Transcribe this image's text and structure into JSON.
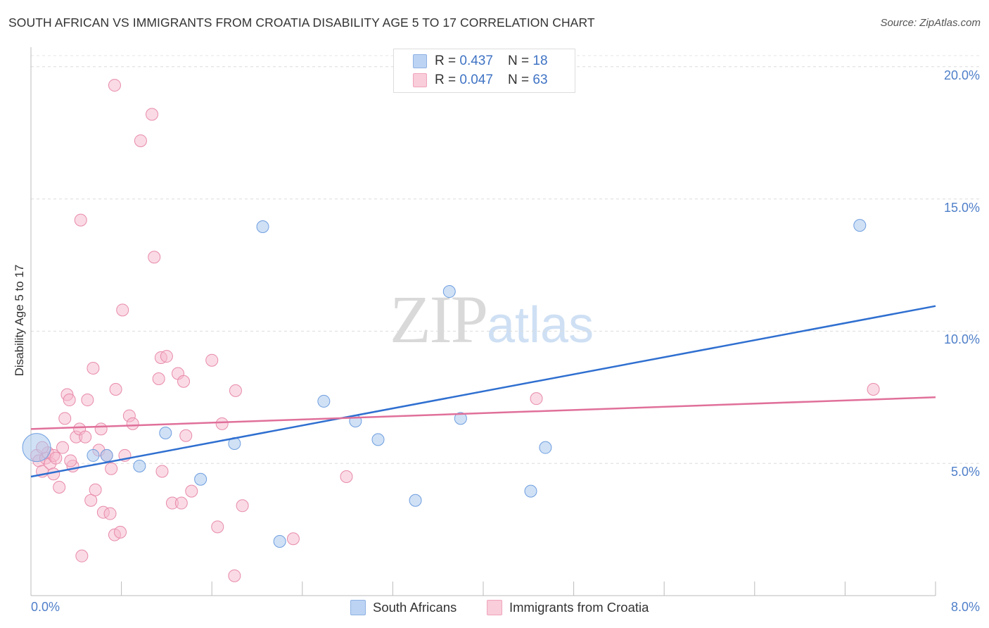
{
  "title": "SOUTH AFRICAN VS IMMIGRANTS FROM CROATIA DISABILITY AGE 5 TO 17 CORRELATION CHART",
  "source": "Source: ZipAtlas.com",
  "watermark": {
    "zip": "ZIP",
    "atlas": "atlas"
  },
  "legend_top": [
    {
      "r_label": "R = ",
      "r_value": "0.437",
      "n_label": "N = ",
      "n_value": "18"
    },
    {
      "r_label": "R = ",
      "r_value": "0.047",
      "n_label": "N = ",
      "n_value": "63"
    }
  ],
  "chart_data": {
    "type": "scatter",
    "title": "SOUTH AFRICAN VS IMMIGRANTS FROM CROATIA DISABILITY AGE 5 TO 17 CORRELATION CHART",
    "xlabel": "",
    "ylabel": "Disability Age 5 to 17",
    "xlim": [
      0,
      8
    ],
    "ylim": [
      0,
      20.5
    ],
    "x_tick_labels": [
      "0.0%",
      "8.0%"
    ],
    "y_ticks": [
      5,
      10,
      15,
      20
    ],
    "y_tick_labels": [
      "5.0%",
      "10.0%",
      "15.0%",
      "20.0%"
    ],
    "grid": true,
    "legend_placement": "bottom",
    "colors": {
      "south_africans": "#a9c8ef",
      "south_africans_line": "#2f6fd0",
      "croatia": "#f6b8cb",
      "croatia_line": "#e0709a"
    },
    "series": [
      {
        "name": "South Africans",
        "r": 0.437,
        "n": 18,
        "trend": {
          "x": [
            0,
            8
          ],
          "y": [
            4.5,
            10.95
          ]
        },
        "points": [
          {
            "x": 0.05,
            "y": 5.6,
            "size": "large"
          },
          {
            "x": 0.55,
            "y": 5.3
          },
          {
            "x": 0.67,
            "y": 5.3
          },
          {
            "x": 0.96,
            "y": 4.9
          },
          {
            "x": 1.19,
            "y": 6.15
          },
          {
            "x": 1.5,
            "y": 4.4
          },
          {
            "x": 1.8,
            "y": 5.75
          },
          {
            "x": 2.05,
            "y": 13.95
          },
          {
            "x": 2.2,
            "y": 2.05
          },
          {
            "x": 2.59,
            "y": 7.35
          },
          {
            "x": 2.87,
            "y": 6.6
          },
          {
            "x": 3.07,
            "y": 5.9
          },
          {
            "x": 3.4,
            "y": 3.6
          },
          {
            "x": 3.7,
            "y": 11.5
          },
          {
            "x": 3.8,
            "y": 6.7
          },
          {
            "x": 4.42,
            "y": 3.95
          },
          {
            "x": 4.55,
            "y": 5.6
          },
          {
            "x": 7.33,
            "y": 14.0
          }
        ]
      },
      {
        "name": "Immigrants from Croatia",
        "r": 0.047,
        "n": 63,
        "trend": {
          "x": [
            0,
            8
          ],
          "y": [
            6.3,
            7.5
          ]
        },
        "points": [
          {
            "x": 0.05,
            "y": 5.3
          },
          {
            "x": 0.07,
            "y": 5.1
          },
          {
            "x": 0.1,
            "y": 4.7
          },
          {
            "x": 0.13,
            "y": 5.2
          },
          {
            "x": 0.15,
            "y": 5.4
          },
          {
            "x": 0.17,
            "y": 5.0
          },
          {
            "x": 0.2,
            "y": 5.3
          },
          {
            "x": 0.2,
            "y": 4.6
          },
          {
            "x": 0.25,
            "y": 4.1
          },
          {
            "x": 0.28,
            "y": 5.6
          },
          {
            "x": 0.3,
            "y": 6.7
          },
          {
            "x": 0.32,
            "y": 7.6
          },
          {
            "x": 0.34,
            "y": 7.4
          },
          {
            "x": 0.37,
            "y": 4.9
          },
          {
            "x": 0.4,
            "y": 6.0
          },
          {
            "x": 0.43,
            "y": 6.3
          },
          {
            "x": 0.45,
            "y": 1.5
          },
          {
            "x": 0.48,
            "y": 6.0
          },
          {
            "x": 0.5,
            "y": 7.4
          },
          {
            "x": 0.53,
            "y": 3.6
          },
          {
            "x": 0.55,
            "y": 8.6
          },
          {
            "x": 0.57,
            "y": 4.0
          },
          {
            "x": 0.6,
            "y": 5.5
          },
          {
            "x": 0.62,
            "y": 6.3
          },
          {
            "x": 0.64,
            "y": 3.15
          },
          {
            "x": 0.67,
            "y": 5.3
          },
          {
            "x": 0.7,
            "y": 3.1
          },
          {
            "x": 0.71,
            "y": 4.8
          },
          {
            "x": 0.74,
            "y": 2.3
          },
          {
            "x": 0.75,
            "y": 7.8
          },
          {
            "x": 0.79,
            "y": 2.4
          },
          {
            "x": 0.83,
            "y": 5.3
          },
          {
            "x": 0.87,
            "y": 6.8
          },
          {
            "x": 0.9,
            "y": 6.5
          },
          {
            "x": 0.81,
            "y": 10.8
          },
          {
            "x": 0.44,
            "y": 14.2
          },
          {
            "x": 0.74,
            "y": 19.3
          },
          {
            "x": 0.97,
            "y": 17.2
          },
          {
            "x": 1.07,
            "y": 18.2
          },
          {
            "x": 1.09,
            "y": 12.8
          },
          {
            "x": 1.13,
            "y": 8.2
          },
          {
            "x": 1.15,
            "y": 9.0
          },
          {
            "x": 1.16,
            "y": 4.7
          },
          {
            "x": 1.2,
            "y": 9.05
          },
          {
            "x": 1.25,
            "y": 3.5
          },
          {
            "x": 1.3,
            "y": 8.4
          },
          {
            "x": 1.33,
            "y": 3.5
          },
          {
            "x": 1.35,
            "y": 8.1
          },
          {
            "x": 1.37,
            "y": 6.05
          },
          {
            "x": 1.42,
            "y": 3.95
          },
          {
            "x": 1.6,
            "y": 8.9
          },
          {
            "x": 1.65,
            "y": 2.6
          },
          {
            "x": 1.69,
            "y": 6.5
          },
          {
            "x": 1.81,
            "y": 7.75
          },
          {
            "x": 1.87,
            "y": 3.4
          },
          {
            "x": 1.8,
            "y": 0.75
          },
          {
            "x": 2.32,
            "y": 2.15
          },
          {
            "x": 2.79,
            "y": 4.5
          },
          {
            "x": 4.47,
            "y": 7.45
          },
          {
            "x": 7.45,
            "y": 7.8
          },
          {
            "x": 0.1,
            "y": 5.6
          },
          {
            "x": 0.35,
            "y": 5.1
          },
          {
            "x": 0.22,
            "y": 5.2
          }
        ]
      }
    ]
  }
}
